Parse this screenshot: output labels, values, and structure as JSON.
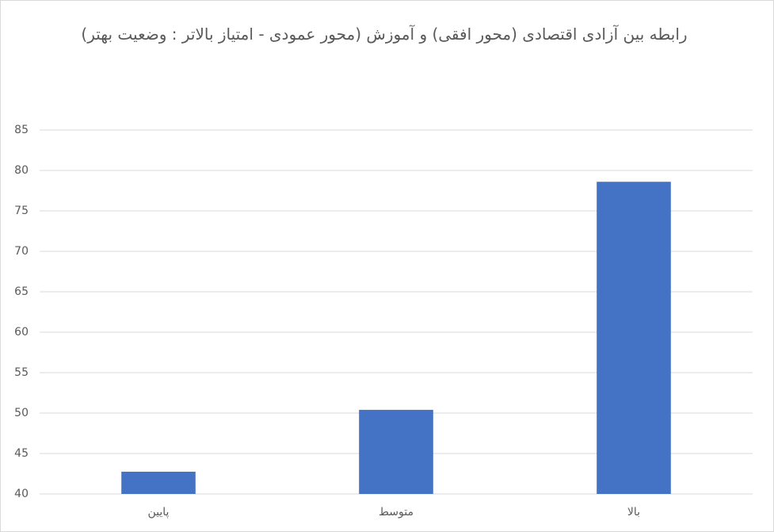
{
  "chart_data": {
    "type": "bar",
    "title": "رابطه بین آزادی اقتصادی (محور افقی) و آموزش (محور عمودی - امتیاز بالاتر : وضعیت بهتر)",
    "categories": [
      "پایین",
      "متوسط",
      "بالا"
    ],
    "values": [
      42.75,
      50.4,
      78.6
    ],
    "color": "#4472c4",
    "ylim": [
      40,
      85
    ],
    "yticks": [
      40,
      45,
      50,
      55,
      60,
      65,
      70,
      75,
      80,
      85
    ],
    "grid": true
  }
}
